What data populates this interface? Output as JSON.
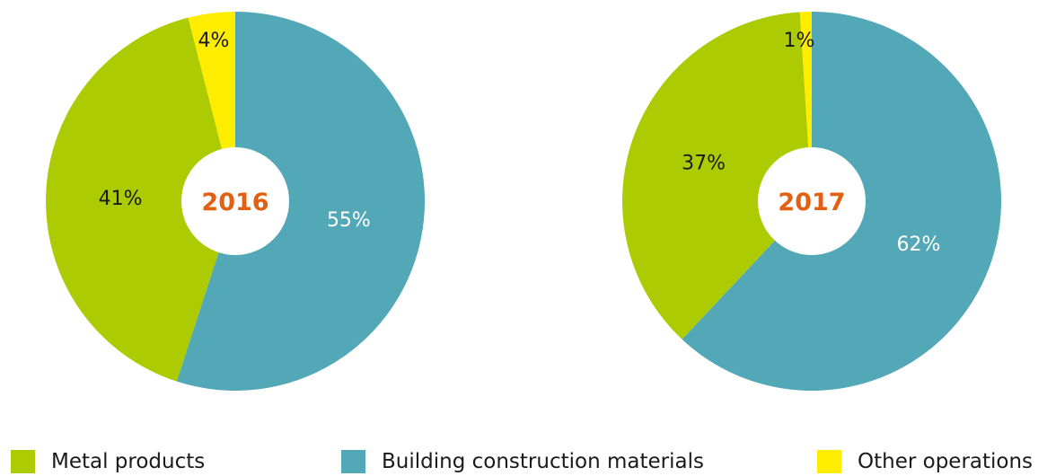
{
  "chart_data": [
    {
      "type": "pie",
      "center_label": "2016",
      "categories": [
        "Building construction materials",
        "Metal products",
        "Other operations"
      ],
      "values": [
        55,
        41,
        4
      ],
      "labels": [
        "55%",
        "41%",
        "4%"
      ]
    },
    {
      "type": "pie",
      "center_label": "2017",
      "categories": [
        "Building construction materials",
        "Metal products",
        "Other operations"
      ],
      "values": [
        62,
        37,
        1
      ],
      "labels": [
        "62%",
        "37%",
        "1%"
      ]
    }
  ],
  "colors": {
    "Building construction materials": "#52a8b6",
    "Metal products": "#accb02",
    "Other operations": "#ffed00",
    "year_label": "#e35f11",
    "label_on_dark": "#ffffff",
    "label_on_light": "#1a1a1a"
  },
  "legend": [
    {
      "label": "Metal products",
      "color": "#accb02"
    },
    {
      "label": "Building construction materials",
      "color": "#52a8b6"
    },
    {
      "label": "Other operations",
      "color": "#ffed00"
    }
  ]
}
